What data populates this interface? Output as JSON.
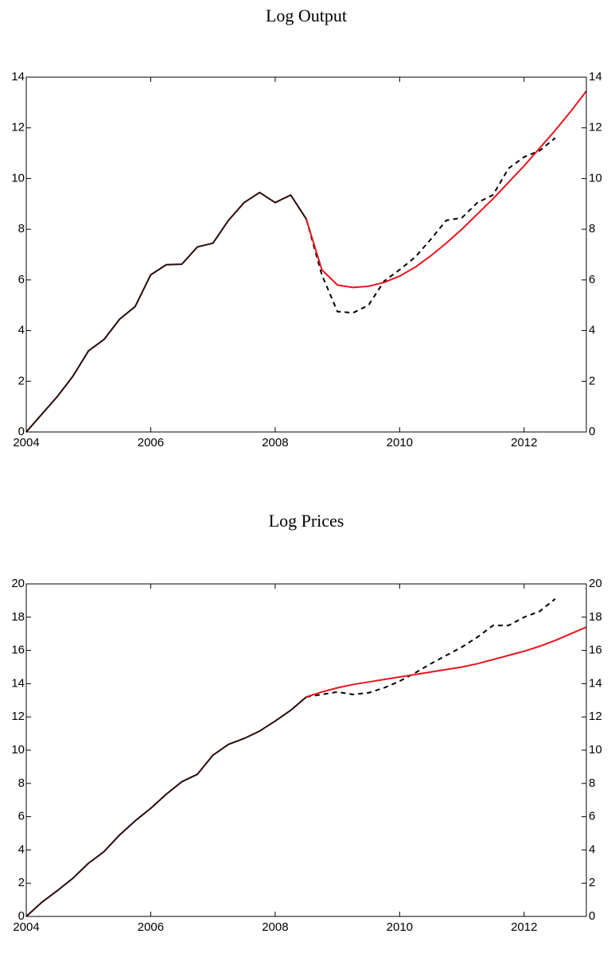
{
  "chart_data": [
    {
      "type": "line",
      "title": "Log Output",
      "x": [
        2004,
        2004.25,
        2004.5,
        2004.75,
        2005,
        2005.25,
        2005.5,
        2005.75,
        2006,
        2006.25,
        2006.5,
        2006.75,
        2007,
        2007.25,
        2007.5,
        2007.75,
        2008,
        2008.25,
        2008.5,
        2008.75,
        2009,
        2009.25,
        2009.5,
        2009.75,
        2010,
        2010.25,
        2010.5,
        2010.75,
        2011,
        2011.25,
        2011.5,
        2011.75,
        2012,
        2012.25,
        2012.5,
        2012.75,
        2013
      ],
      "xlim": [
        2004,
        2013
      ],
      "xticks": [
        2004,
        2006,
        2008,
        2010,
        2012
      ],
      "ylim": [
        0,
        14
      ],
      "yticks": [
        0,
        2,
        4,
        6,
        8,
        10,
        12,
        14
      ],
      "right_axis_labels": true,
      "series": [
        {
          "color": "#2a0808",
          "dashed": false,
          "values": [
            0,
            0.7,
            1.4,
            2.2,
            3.2,
            3.65,
            4.45,
            4.95,
            6.2,
            6.6,
            6.62,
            7.3,
            7.45,
            8.35,
            9.05,
            9.45,
            9.05,
            9.35,
            8.4,
            null,
            null,
            null,
            null,
            null,
            null,
            null,
            null,
            null,
            null,
            null,
            null,
            null,
            null,
            null,
            null,
            null,
            null
          ]
        },
        {
          "color": "#000000",
          "dashed": true,
          "values": [
            null,
            null,
            null,
            null,
            null,
            null,
            null,
            null,
            null,
            null,
            null,
            null,
            null,
            null,
            null,
            null,
            null,
            null,
            8.4,
            6.2,
            4.75,
            4.7,
            5.0,
            5.95,
            6.4,
            6.9,
            7.6,
            8.35,
            8.45,
            9.05,
            9.35,
            10.4,
            10.85,
            11.1,
            11.6,
            null,
            null
          ]
        },
        {
          "color": "#e8141c",
          "dashed": false,
          "values": [
            null,
            null,
            null,
            null,
            null,
            null,
            null,
            null,
            null,
            null,
            null,
            null,
            null,
            null,
            null,
            null,
            null,
            null,
            8.4,
            6.4,
            5.8,
            5.7,
            5.75,
            5.9,
            6.15,
            6.5,
            6.95,
            7.45,
            8.0,
            8.6,
            9.2,
            9.85,
            10.5,
            11.2,
            11.9,
            12.65,
            13.45
          ]
        }
      ]
    },
    {
      "type": "line",
      "title": "Log Prices",
      "x": [
        2004,
        2004.25,
        2004.5,
        2004.75,
        2005,
        2005.25,
        2005.5,
        2005.75,
        2006,
        2006.25,
        2006.5,
        2006.75,
        2007,
        2007.25,
        2007.5,
        2007.75,
        2008,
        2008.25,
        2008.5,
        2008.75,
        2009,
        2009.25,
        2009.5,
        2009.75,
        2010,
        2010.25,
        2010.5,
        2010.75,
        2011,
        2011.25,
        2011.5,
        2011.75,
        2012,
        2012.25,
        2012.5,
        2012.75,
        2013
      ],
      "xlim": [
        2004,
        2013
      ],
      "xticks": [
        2004,
        2006,
        2008,
        2010,
        2012
      ],
      "ylim": [
        0,
        20
      ],
      "yticks": [
        0,
        2,
        4,
        6,
        8,
        10,
        12,
        14,
        16,
        18,
        20
      ],
      "right_axis_labels": true,
      "series": [
        {
          "color": "#2a0808",
          "dashed": false,
          "values": [
            0,
            0.85,
            1.55,
            2.3,
            3.2,
            3.9,
            4.9,
            5.75,
            6.5,
            7.35,
            8.1,
            8.55,
            9.7,
            10.35,
            10.7,
            11.15,
            11.75,
            12.4,
            13.2,
            null,
            null,
            null,
            null,
            null,
            null,
            null,
            null,
            null,
            null,
            null,
            null,
            null,
            null,
            null,
            null,
            null,
            null
          ]
        },
        {
          "color": "#000000",
          "dashed": true,
          "values": [
            null,
            null,
            null,
            null,
            null,
            null,
            null,
            null,
            null,
            null,
            null,
            null,
            null,
            null,
            null,
            null,
            null,
            null,
            13.2,
            13.35,
            13.5,
            13.35,
            13.45,
            13.75,
            14.15,
            14.65,
            15.2,
            15.7,
            16.2,
            16.8,
            17.5,
            17.5,
            18.0,
            18.35,
            19.1,
            null,
            null
          ]
        },
        {
          "color": "#e8141c",
          "dashed": false,
          "values": [
            null,
            null,
            null,
            null,
            null,
            null,
            null,
            null,
            null,
            null,
            null,
            null,
            null,
            null,
            null,
            null,
            null,
            null,
            13.2,
            13.5,
            13.75,
            13.95,
            14.1,
            14.25,
            14.4,
            14.55,
            14.7,
            14.85,
            15.0,
            15.2,
            15.45,
            15.7,
            15.95,
            16.25,
            16.6,
            17.0,
            17.4
          ]
        }
      ]
    }
  ]
}
